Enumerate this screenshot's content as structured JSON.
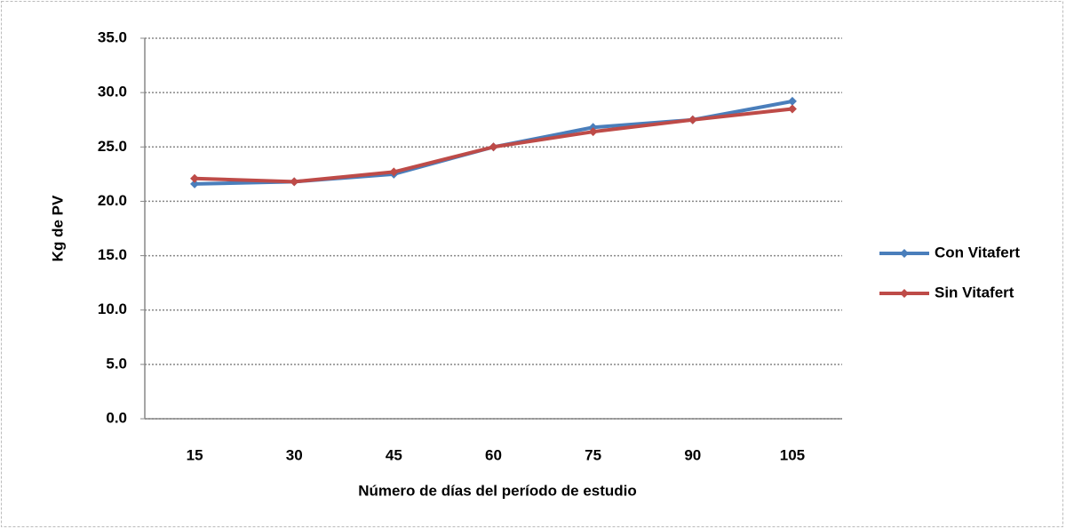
{
  "chart_data": {
    "type": "line",
    "x_label": "Número de días del período de estudio",
    "y_label": "Kg de PV",
    "categories": [
      "15",
      "30",
      "45",
      "60",
      "75",
      "90",
      "105"
    ],
    "series": [
      {
        "name": "Con Vitafert",
        "color": "#4a7ebb",
        "values": [
          21.6,
          21.8,
          22.5,
          25.0,
          26.8,
          27.5,
          29.2
        ]
      },
      {
        "name": "Sin Vitafert",
        "color": "#be4b48",
        "values": [
          22.1,
          21.8,
          22.7,
          25.0,
          26.4,
          27.5,
          28.5
        ]
      }
    ],
    "ylim": [
      0,
      35
    ],
    "yticks": [
      {
        "value": 0,
        "label": "0.0"
      },
      {
        "value": 5,
        "label": "5.0"
      },
      {
        "value": 10,
        "label": "10.0"
      },
      {
        "value": 15,
        "label": "15.0"
      },
      {
        "value": 20,
        "label": "20.0"
      },
      {
        "value": 25,
        "label": "25.0"
      },
      {
        "value": 30,
        "label": "30.0"
      },
      {
        "value": 35,
        "label": "35.0"
      }
    ],
    "grid": true,
    "legend": "right"
  }
}
